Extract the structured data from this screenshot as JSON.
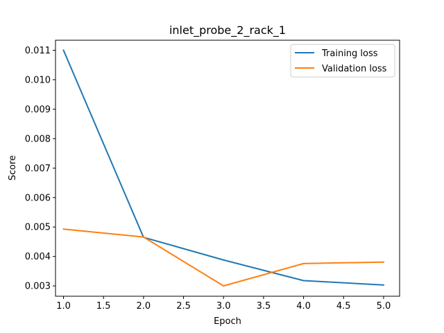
{
  "chart_data": {
    "type": "line",
    "title": "inlet_probe_2_rack_1",
    "xlabel": "Epoch",
    "ylabel": "Score",
    "x": [
      1.0,
      2.0,
      3.0,
      4.0,
      5.0
    ],
    "xlim": [
      0.9,
      5.2
    ],
    "ylim": [
      0.00265,
      0.01134
    ],
    "xticks": [
      1.0,
      1.5,
      2.0,
      2.5,
      3.0,
      3.5,
      4.0,
      4.5,
      5.0
    ],
    "xtick_labels": [
      "1.0",
      "1.5",
      "2.0",
      "2.5",
      "3.0",
      "3.5",
      "4.0",
      "4.5",
      "5.0"
    ],
    "yticks": [
      0.003,
      0.004,
      0.005,
      0.006,
      0.007,
      0.008,
      0.009,
      0.01,
      0.011
    ],
    "ytick_labels": [
      "0.003",
      "0.004",
      "0.005",
      "0.006",
      "0.007",
      "0.008",
      "0.009",
      "0.010",
      "0.011"
    ],
    "grid": false,
    "legend_position": "top-right",
    "series": [
      {
        "name": "Training loss",
        "color": "#1f77b4",
        "values": [
          0.011,
          0.00465,
          0.00388,
          0.00318,
          0.00303
        ]
      },
      {
        "name": "Validation loss",
        "color": "#ff7f0e",
        "values": [
          0.00493,
          0.00466,
          0.003,
          0.00376,
          0.00381
        ]
      }
    ]
  }
}
